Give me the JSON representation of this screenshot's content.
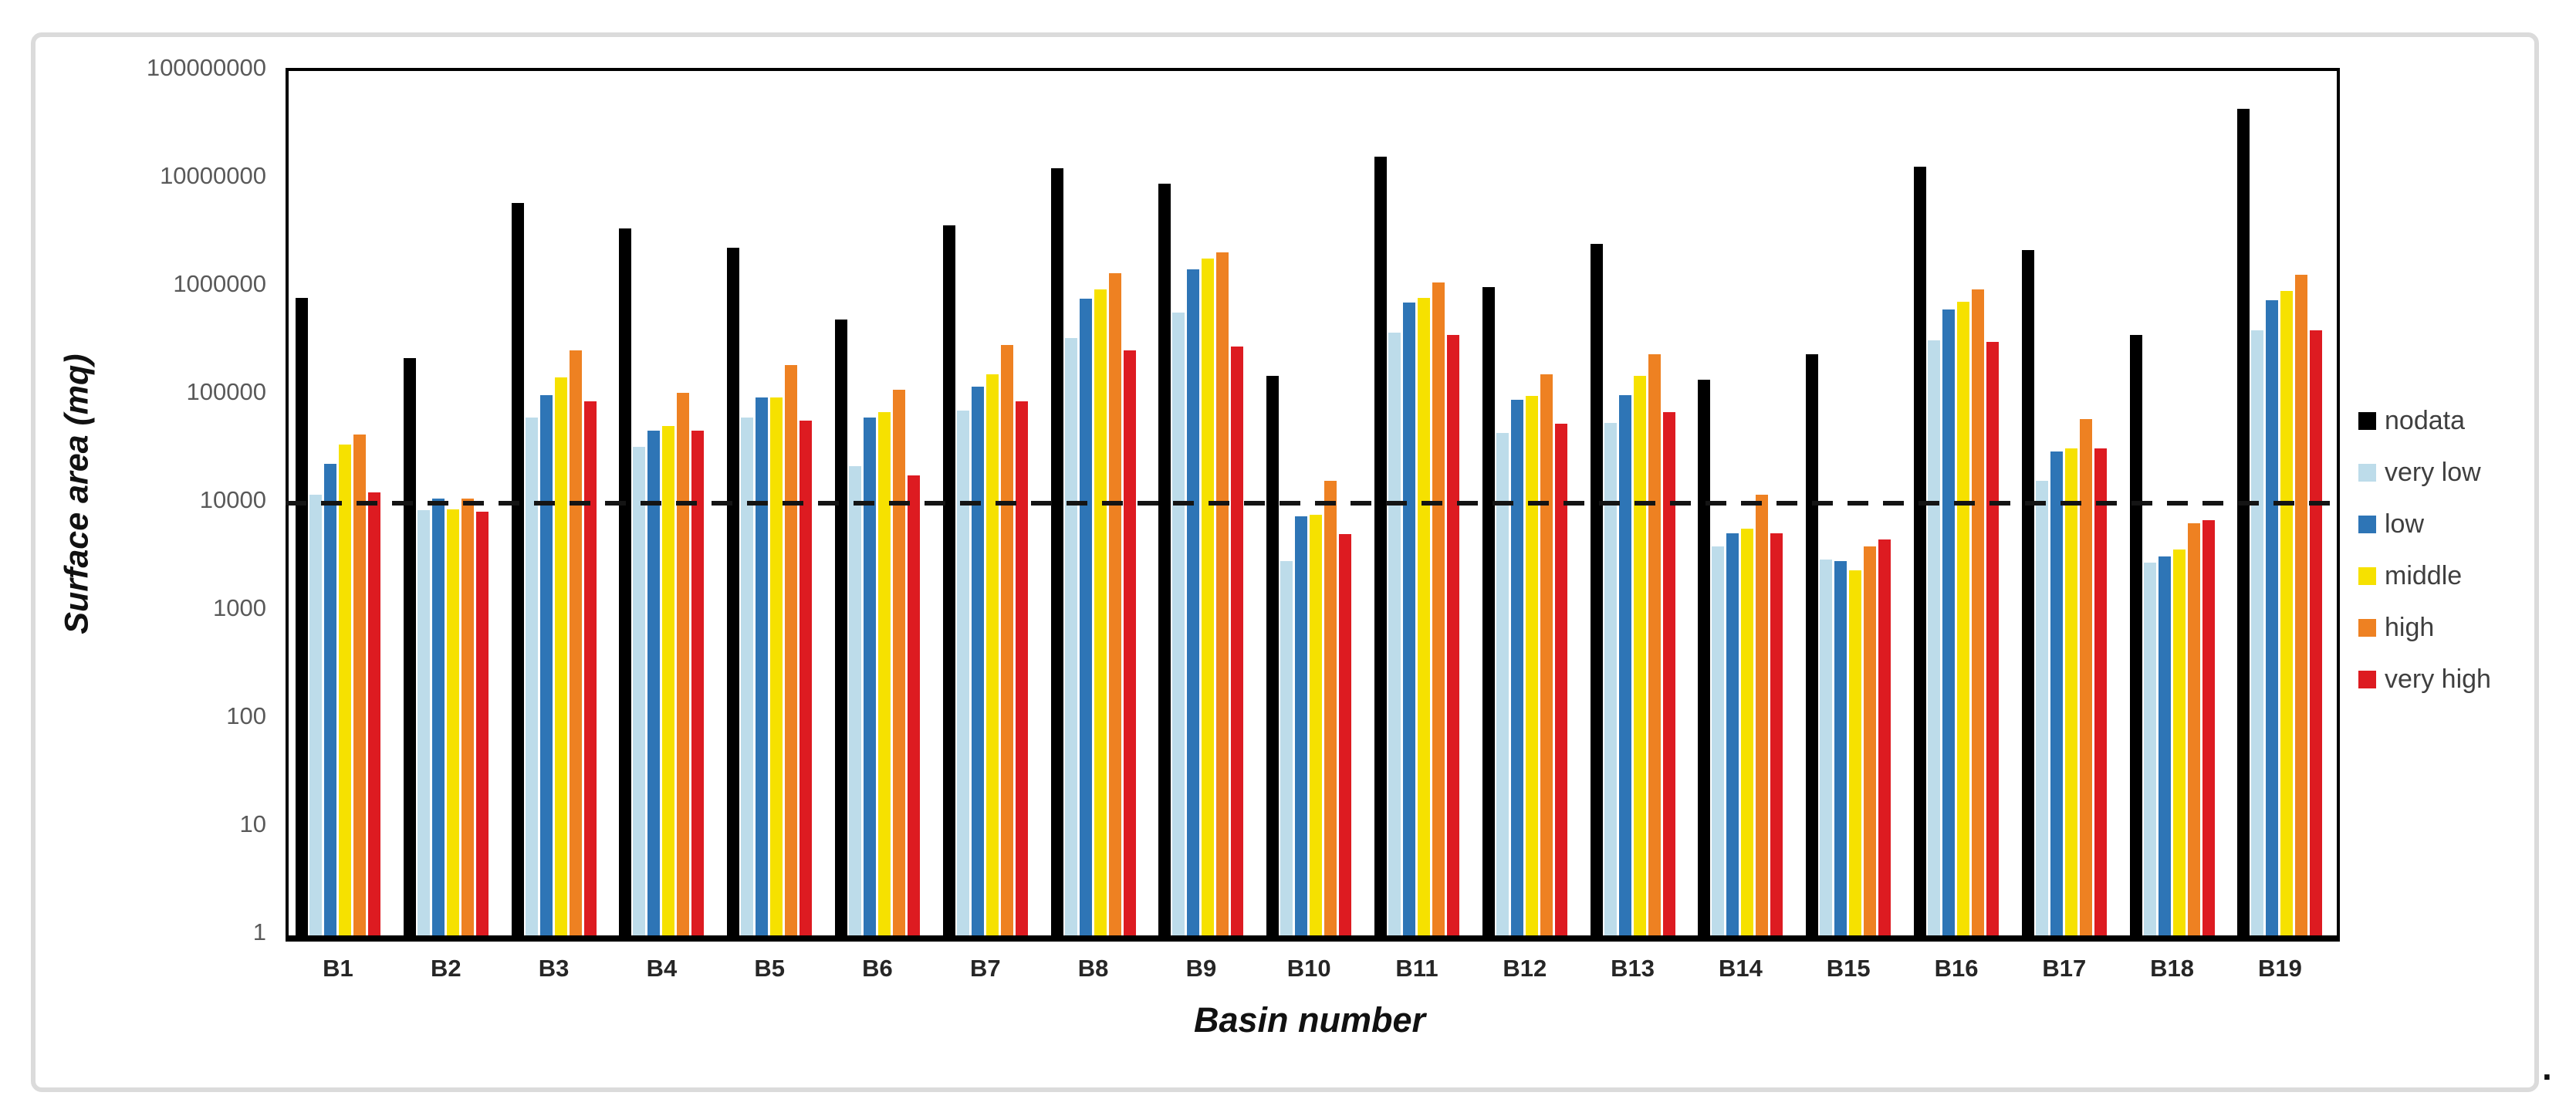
{
  "figure": {
    "trailing_period": "."
  },
  "chart_data": {
    "type": "bar",
    "title": "",
    "xlabel": "Basin number",
    "ylabel": "Surface area (mq)",
    "y_scale": "log",
    "ylim": [
      1,
      100000000
    ],
    "y_ticks": [
      1,
      10,
      100,
      1000,
      10000,
      100000,
      1000000,
      10000000,
      100000000
    ],
    "grid": false,
    "legend_position": "right",
    "threshold_line": {
      "value": 10000,
      "style": "dashed",
      "color": "#141414"
    },
    "categories": [
      "B1",
      "B2",
      "B3",
      "B4",
      "B5",
      "B6",
      "B7",
      "B8",
      "B9",
      "B10",
      "B11",
      "B12",
      "B13",
      "B14",
      "B15",
      "B16",
      "B17",
      "B18",
      "B19"
    ],
    "series": [
      {
        "name": "nodata",
        "color": "#000000",
        "values": [
          800000,
          220000,
          6000000,
          3500000,
          2300000,
          500000,
          3700000,
          12500000,
          9000000,
          150000,
          16000000,
          1000000,
          2500000,
          140000,
          240000,
          13000000,
          2200000,
          360000,
          45000000
        ]
      },
      {
        "name": "very low",
        "color": "#bddcea",
        "values": [
          12000,
          8600,
          62000,
          33000,
          62000,
          22000,
          72000,
          340000,
          580000,
          2900,
          380000,
          45000,
          55000,
          4000,
          3000,
          320000,
          16000,
          2800,
          400000
        ]
      },
      {
        "name": "low",
        "color": "#2e75b6",
        "values": [
          23000,
          11000,
          100000,
          47000,
          95000,
          62000,
          120000,
          780000,
          1450000,
          7500,
          720000,
          90000,
          100000,
          5300,
          2900,
          620000,
          30000,
          3200,
          760000
        ]
      },
      {
        "name": "middle",
        "color": "#f6e100",
        "values": [
          35000,
          8700,
          145000,
          52000,
          95000,
          70000,
          155000,
          950000,
          1850000,
          7800,
          790000,
          98000,
          150000,
          5800,
          2400,
          730000,
          32000,
          3700,
          920000
        ]
      },
      {
        "name": "high",
        "color": "#ee8122",
        "values": [
          43000,
          11000,
          260000,
          105000,
          190000,
          112000,
          290000,
          1350000,
          2100000,
          16000,
          1100000,
          155000,
          240000,
          12000,
          4000,
          950000,
          60000,
          6500,
          1300000
        ]
      },
      {
        "name": "very high",
        "color": "#dd1b21",
        "values": [
          12500,
          8300,
          87000,
          47000,
          58000,
          18000,
          87000,
          260000,
          280000,
          5200,
          360000,
          54000,
          70000,
          5300,
          4600,
          310000,
          32000,
          7000,
          400000
        ]
      }
    ]
  }
}
